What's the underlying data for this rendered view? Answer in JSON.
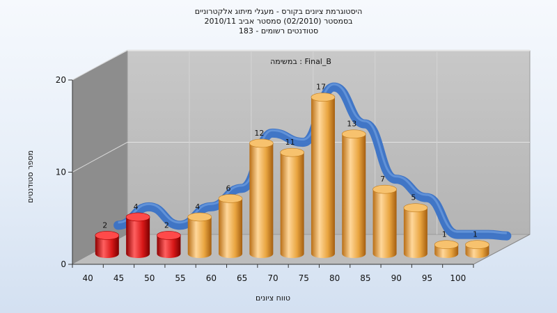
{
  "chart_data": {
    "type": "bar",
    "title_lines": [
      "היסטוגרמת ציונים בקורס - מעגלי מיתוג אלקטרוניים",
      "בסמסטר  (02/2010)  סמסטר אביב 2010/11",
      "183 - סטודנטים רשומים"
    ],
    "subtitle": "במשימה : Final_B",
    "xlabel": "טווח ציונים",
    "ylabel": "מספר סטודנטים",
    "categories": [
      "40",
      "45",
      "50",
      "55",
      "60",
      "65",
      "70",
      "75",
      "80",
      "85",
      "90",
      "95",
      "100"
    ],
    "values": [
      2,
      4,
      2,
      4,
      6,
      12,
      11,
      17,
      13,
      7,
      5,
      1,
      1
    ],
    "bar_colors": [
      "#d81818",
      "#d81818",
      "#d81818",
      "#e9a540",
      "#e9a540",
      "#e9a540",
      "#e9a540",
      "#e9a540",
      "#e9a540",
      "#e9a540",
      "#e9a540",
      "#e9a540",
      "#e9a540"
    ],
    "curve_color": "#3a72c6",
    "ylim": [
      0,
      20
    ],
    "yticks": [
      0,
      10,
      20
    ],
    "grid": true
  }
}
